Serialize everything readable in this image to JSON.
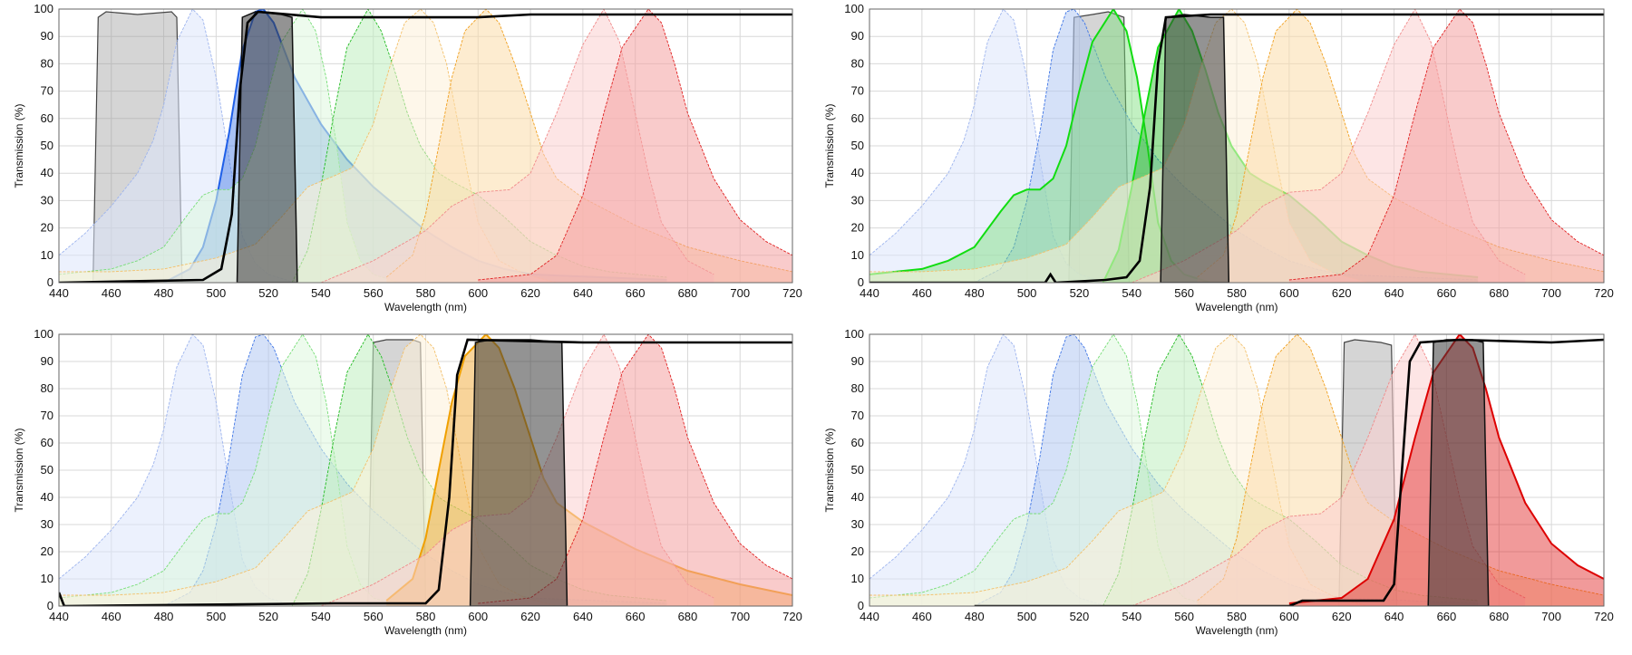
{
  "chart_data": {
    "type": "area",
    "xlabel": "Wavelength (nm)",
    "ylabel": "Transmission (%)",
    "xlim": [
      440,
      720
    ],
    "ylim": [
      0,
      100
    ],
    "xticks": [
      "440",
      "460",
      "480",
      "500",
      "520",
      "540",
      "560",
      "580",
      "600",
      "620",
      "640",
      "660",
      "680",
      "700",
      "720"
    ],
    "yticks": [
      "0",
      "10",
      "20",
      "30",
      "40",
      "50",
      "60",
      "70",
      "80",
      "90",
      "100"
    ],
    "grid": true,
    "dye_spectra": [
      {
        "peak": 491,
        "line": "#9db4ee",
        "fill": "#dde6fb",
        "points": [
          [
            440,
            10
          ],
          [
            450,
            18
          ],
          [
            460,
            28
          ],
          [
            470,
            40
          ],
          [
            476,
            52
          ],
          [
            480,
            65
          ],
          [
            485,
            88
          ],
          [
            491,
            100
          ],
          [
            495,
            96
          ],
          [
            500,
            75
          ],
          [
            505,
            45
          ],
          [
            510,
            17
          ],
          [
            515,
            7
          ],
          [
            520,
            3
          ],
          [
            530,
            0
          ]
        ]
      },
      {
        "peak": 517,
        "line": "#3f76e6",
        "fill": "#b3c9f3",
        "points": [
          [
            480,
            0
          ],
          [
            490,
            5
          ],
          [
            495,
            13
          ],
          [
            500,
            30
          ],
          [
            505,
            55
          ],
          [
            510,
            85
          ],
          [
            515,
            99
          ],
          [
            518,
            100
          ],
          [
            522,
            95
          ],
          [
            530,
            75
          ],
          [
            540,
            58
          ],
          [
            550,
            45
          ],
          [
            560,
            35
          ],
          [
            570,
            27
          ],
          [
            580,
            19
          ],
          [
            590,
            13
          ],
          [
            600,
            8
          ],
          [
            610,
            5
          ],
          [
            620,
            3
          ],
          [
            672,
            1
          ]
        ]
      },
      {
        "peak": 533,
        "line": "#77dd77",
        "fill": "#dff7df",
        "points": [
          [
            440,
            3
          ],
          [
            460,
            5
          ],
          [
            470,
            8
          ],
          [
            480,
            13
          ],
          [
            490,
            26
          ],
          [
            495,
            32
          ],
          [
            500,
            34
          ],
          [
            505,
            34
          ],
          [
            510,
            38
          ],
          [
            515,
            50
          ],
          [
            520,
            70
          ],
          [
            525,
            88
          ],
          [
            533,
            100
          ],
          [
            538,
            92
          ],
          [
            542,
            75
          ],
          [
            546,
            50
          ],
          [
            550,
            22
          ],
          [
            555,
            8
          ],
          [
            560,
            3
          ],
          [
            570,
            0
          ]
        ]
      },
      {
        "peak": 558,
        "line": "#22bb22",
        "fill": "#bfeebf",
        "points": [
          [
            529,
            0
          ],
          [
            535,
            12
          ],
          [
            540,
            35
          ],
          [
            545,
            62
          ],
          [
            550,
            86
          ],
          [
            558,
            100
          ],
          [
            563,
            92
          ],
          [
            568,
            78
          ],
          [
            573,
            62
          ],
          [
            578,
            50
          ],
          [
            585,
            40
          ],
          [
            590,
            37
          ],
          [
            600,
            32
          ],
          [
            610,
            24
          ],
          [
            620,
            15
          ],
          [
            630,
            10
          ],
          [
            640,
            6
          ],
          [
            650,
            4
          ],
          [
            672,
            2
          ]
        ]
      },
      {
        "peak": 578,
        "line": "#f3c06a",
        "fill": "#fdf0d8",
        "points": [
          [
            440,
            4
          ],
          [
            460,
            4
          ],
          [
            480,
            5
          ],
          [
            500,
            9
          ],
          [
            515,
            14
          ],
          [
            525,
            24
          ],
          [
            535,
            35
          ],
          [
            545,
            39
          ],
          [
            552,
            42
          ],
          [
            560,
            58
          ],
          [
            566,
            78
          ],
          [
            572,
            95
          ],
          [
            578,
            100
          ],
          [
            583,
            95
          ],
          [
            588,
            80
          ],
          [
            592,
            60
          ],
          [
            596,
            40
          ],
          [
            600,
            22
          ],
          [
            608,
            8
          ],
          [
            618,
            3
          ],
          [
            630,
            0
          ]
        ]
      },
      {
        "peak": 603,
        "line": "#f0a020",
        "fill": "#fbdcaa",
        "points": [
          [
            565,
            2
          ],
          [
            575,
            10
          ],
          [
            580,
            25
          ],
          [
            585,
            50
          ],
          [
            590,
            75
          ],
          [
            595,
            92
          ],
          [
            603,
            100
          ],
          [
            608,
            95
          ],
          [
            614,
            80
          ],
          [
            620,
            62
          ],
          [
            625,
            47
          ],
          [
            630,
            38
          ],
          [
            640,
            31
          ],
          [
            650,
            26
          ],
          [
            660,
            21
          ],
          [
            680,
            13
          ],
          [
            700,
            8
          ],
          [
            720,
            4
          ]
        ]
      },
      {
        "peak": 648,
        "line": "#f08a8a",
        "fill": "#fbd0d0",
        "points": [
          [
            540,
            0
          ],
          [
            560,
            8
          ],
          [
            580,
            19
          ],
          [
            590,
            28
          ],
          [
            600,
            33
          ],
          [
            612,
            34
          ],
          [
            620,
            40
          ],
          [
            630,
            62
          ],
          [
            640,
            87
          ],
          [
            648,
            100
          ],
          [
            654,
            88
          ],
          [
            660,
            62
          ],
          [
            665,
            40
          ],
          [
            670,
            22
          ],
          [
            680,
            8
          ],
          [
            690,
            3
          ]
        ]
      },
      {
        "peak": 665,
        "line": "#e02020",
        "fill": "#f4a0a0",
        "points": [
          [
            600,
            1
          ],
          [
            620,
            3
          ],
          [
            630,
            10
          ],
          [
            640,
            32
          ],
          [
            648,
            62
          ],
          [
            655,
            86
          ],
          [
            665,
            100
          ],
          [
            670,
            95
          ],
          [
            675,
            80
          ],
          [
            680,
            62
          ],
          [
            690,
            38
          ],
          [
            700,
            23
          ],
          [
            710,
            15
          ],
          [
            720,
            10
          ]
        ]
      }
    ],
    "panels": [
      {
        "highlight": [
          1
        ],
        "accent": "#1f5fe8",
        "excitation_filter": [
          [
            453,
            0
          ],
          [
            455,
            97
          ],
          [
            458,
            99
          ],
          [
            470,
            98
          ],
          [
            483,
            99
          ],
          [
            485,
            97
          ],
          [
            487,
            0
          ]
        ],
        "emission_filter": [
          [
            508,
            0
          ],
          [
            510,
            97
          ],
          [
            515,
            99
          ],
          [
            525,
            98
          ],
          [
            529,
            97
          ],
          [
            531,
            0
          ]
        ],
        "dichroic": [
          [
            440,
            0
          ],
          [
            495,
            1
          ],
          [
            502,
            5
          ],
          [
            506,
            25
          ],
          [
            509,
            70
          ],
          [
            512,
            95
          ],
          [
            516,
            99
          ],
          [
            540,
            97
          ],
          [
            600,
            97
          ],
          [
            620,
            98
          ],
          [
            720,
            98
          ]
        ]
      },
      {
        "highlight": [
          2,
          3
        ],
        "accent": "#11dd11",
        "excitation_filter": [
          [
            516,
            0
          ],
          [
            518,
            97
          ],
          [
            525,
            98
          ],
          [
            531,
            99
          ],
          [
            537,
            97
          ],
          [
            539,
            0
          ]
        ],
        "emission_filter": [
          [
            551,
            0
          ],
          [
            553,
            97
          ],
          [
            560,
            98
          ],
          [
            570,
            97
          ],
          [
            575,
            97
          ],
          [
            577,
            0
          ]
        ],
        "dichroic": [
          [
            440,
            0
          ],
          [
            507,
            0
          ],
          [
            509,
            3
          ],
          [
            511,
            0
          ],
          [
            530,
            1
          ],
          [
            538,
            2
          ],
          [
            543,
            8
          ],
          [
            547,
            35
          ],
          [
            550,
            80
          ],
          [
            553,
            97
          ],
          [
            570,
            98
          ],
          [
            600,
            98
          ],
          [
            720,
            98
          ]
        ]
      },
      {
        "highlight": [
          5
        ],
        "accent": "#f0a000",
        "excitation_filter": [
          [
            558,
            0
          ],
          [
            560,
            97
          ],
          [
            565,
            98
          ],
          [
            575,
            98
          ],
          [
            578,
            97
          ],
          [
            580,
            0
          ]
        ],
        "emission_filter": [
          [
            597,
            0
          ],
          [
            599,
            97
          ],
          [
            605,
            98
          ],
          [
            620,
            98
          ],
          [
            632,
            97
          ],
          [
            634,
            0
          ]
        ],
        "dichroic": [
          [
            440,
            5
          ],
          [
            442,
            0
          ],
          [
            545,
            1
          ],
          [
            580,
            1
          ],
          [
            585,
            6
          ],
          [
            589,
            40
          ],
          [
            592,
            85
          ],
          [
            596,
            98
          ],
          [
            640,
            97
          ],
          [
            720,
            97
          ]
        ]
      },
      {
        "highlight": [
          7
        ],
        "accent": "#dd0000",
        "excitation_filter": [
          [
            619,
            0
          ],
          [
            621,
            97
          ],
          [
            625,
            98
          ],
          [
            635,
            97
          ],
          [
            639,
            96
          ],
          [
            641,
            0
          ]
        ],
        "emission_filter": [
          [
            653,
            0
          ],
          [
            655,
            97
          ],
          [
            660,
            98
          ],
          [
            670,
            98
          ],
          [
            674,
            97
          ],
          [
            676,
            0
          ]
        ],
        "dichroic": [
          [
            480,
            0
          ],
          [
            600,
            0
          ],
          [
            605,
            2
          ],
          [
            620,
            2
          ],
          [
            636,
            2
          ],
          [
            640,
            8
          ],
          [
            643,
            50
          ],
          [
            646,
            90
          ],
          [
            650,
            97
          ],
          [
            665,
            98
          ],
          [
            700,
            97
          ],
          [
            720,
            98
          ]
        ]
      }
    ]
  }
}
